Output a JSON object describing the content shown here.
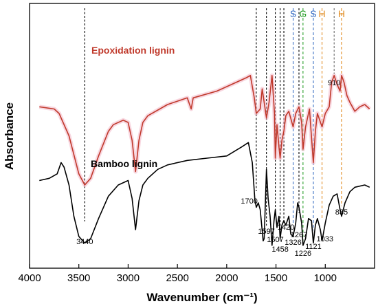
{
  "chart_data": {
    "type": "line",
    "xlabel": "Wavenumber (cm⁻¹)",
    "ylabel": "Absorbance",
    "xlim": [
      4000,
      500
    ],
    "x_reversed": true,
    "x_ticks": [
      4000,
      3500,
      3000,
      2500,
      2000,
      1500,
      1000
    ],
    "y_tick_labels": false,
    "grid": false,
    "colors": {
      "epoxidation": "#c0392b",
      "bamboo": "#000000",
      "S": "#3a6fc4",
      "G": "#2ca02c",
      "H": "#e08a1e",
      "marker": "#000000",
      "marker910": "#666666"
    },
    "series": [
      {
        "name": "Epoxidation lignin",
        "color": "#c0392b",
        "points": [
          [
            3900,
            63
          ],
          [
            3750,
            62
          ],
          [
            3700,
            60
          ],
          [
            3600,
            50
          ],
          [
            3500,
            33
          ],
          [
            3440,
            28
          ],
          [
            3380,
            31
          ],
          [
            3300,
            41
          ],
          [
            3200,
            52
          ],
          [
            3150,
            55
          ],
          [
            3050,
            57
          ],
          [
            3000,
            56
          ],
          [
            2960,
            48
          ],
          [
            2925,
            34
          ],
          [
            2890,
            48
          ],
          [
            2850,
            56
          ],
          [
            2800,
            59
          ],
          [
            2600,
            64
          ],
          [
            2400,
            67
          ],
          [
            2360,
            62
          ],
          [
            2340,
            67
          ],
          [
            2100,
            70
          ],
          [
            1900,
            74
          ],
          [
            1800,
            76
          ],
          [
            1760,
            77
          ],
          [
            1720,
            67
          ],
          [
            1700,
            60
          ],
          [
            1660,
            62
          ],
          [
            1640,
            71
          ],
          [
            1597,
            58
          ],
          [
            1570,
            65
          ],
          [
            1540,
            77
          ],
          [
            1515,
            60
          ],
          [
            1507,
            40
          ],
          [
            1490,
            55
          ],
          [
            1470,
            45
          ],
          [
            1458,
            40
          ],
          [
            1440,
            48
          ],
          [
            1420,
            52
          ],
          [
            1400,
            59
          ],
          [
            1370,
            61
          ],
          [
            1326,
            54
          ],
          [
            1300,
            60
          ],
          [
            1267,
            63
          ],
          [
            1240,
            56
          ],
          [
            1226,
            44
          ],
          [
            1200,
            54
          ],
          [
            1160,
            62
          ],
          [
            1121,
            38
          ],
          [
            1100,
            52
          ],
          [
            1080,
            60
          ],
          [
            1033,
            54
          ],
          [
            1000,
            60
          ],
          [
            960,
            63
          ],
          [
            935,
            74
          ],
          [
            910,
            77
          ],
          [
            880,
            73
          ],
          [
            850,
            70
          ],
          [
            835,
            77
          ],
          [
            810,
            74
          ],
          [
            780,
            68
          ],
          [
            750,
            65
          ],
          [
            700,
            61
          ],
          [
            650,
            63
          ],
          [
            600,
            64
          ],
          [
            550,
            62
          ]
        ]
      },
      {
        "name": "Bamboo lignin",
        "color": "#000000",
        "points": [
          [
            3900,
            30
          ],
          [
            3800,
            31
          ],
          [
            3720,
            33
          ],
          [
            3680,
            38
          ],
          [
            3650,
            36
          ],
          [
            3600,
            28
          ],
          [
            3550,
            14
          ],
          [
            3500,
            5
          ],
          [
            3440,
            2
          ],
          [
            3380,
            4
          ],
          [
            3300,
            13
          ],
          [
            3200,
            23
          ],
          [
            3100,
            28
          ],
          [
            3000,
            30
          ],
          [
            2960,
            22
          ],
          [
            2925,
            8
          ],
          [
            2890,
            21
          ],
          [
            2850,
            28
          ],
          [
            2800,
            31
          ],
          [
            2700,
            35
          ],
          [
            2600,
            37
          ],
          [
            2400,
            39
          ],
          [
            2200,
            40
          ],
          [
            2000,
            41
          ],
          [
            1850,
            45
          ],
          [
            1780,
            47
          ],
          [
            1740,
            38
          ],
          [
            1715,
            22
          ],
          [
            1700,
            18
          ],
          [
            1680,
            20
          ],
          [
            1660,
            17
          ],
          [
            1630,
            3
          ],
          [
            1620,
            4
          ],
          [
            1597,
            35
          ],
          [
            1580,
            22
          ],
          [
            1560,
            14
          ],
          [
            1540,
            1
          ],
          [
            1520,
            12
          ],
          [
            1507,
            17
          ],
          [
            1490,
            9
          ],
          [
            1470,
            14
          ],
          [
            1458,
            4
          ],
          [
            1440,
            10
          ],
          [
            1420,
            12
          ],
          [
            1400,
            10
          ],
          [
            1370,
            14
          ],
          [
            1350,
            6
          ],
          [
            1326,
            5
          ],
          [
            1300,
            11
          ],
          [
            1280,
            20
          ],
          [
            1267,
            18
          ],
          [
            1240,
            11
          ],
          [
            1226,
            1
          ],
          [
            1200,
            4
          ],
          [
            1170,
            13
          ],
          [
            1140,
            12
          ],
          [
            1121,
            2
          ],
          [
            1100,
            10
          ],
          [
            1080,
            13
          ],
          [
            1050,
            8
          ],
          [
            1033,
            3
          ],
          [
            1000,
            11
          ],
          [
            960,
            19
          ],
          [
            920,
            23
          ],
          [
            880,
            24
          ],
          [
            850,
            17
          ],
          [
            835,
            14
          ],
          [
            800,
            20
          ],
          [
            750,
            25
          ],
          [
            700,
            27
          ],
          [
            600,
            28
          ],
          [
            550,
            27
          ]
        ]
      }
    ],
    "series_labels": [
      "Epoxidation lignin",
      "Bamboo lignin"
    ],
    "peak_lines": [
      3440,
      1700,
      1597,
      1507,
      1458,
      1420,
      1326,
      1267,
      1226,
      1121,
      1033,
      910,
      835
    ],
    "peak_labels": [
      "3440",
      "1700",
      "1597",
      "1507",
      "1458",
      "1420",
      "1326",
      "1267",
      "1226",
      "1121",
      "1033",
      "910",
      "835"
    ],
    "band_labels": [
      {
        "text": "S",
        "x": 1326,
        "color": "#3a6fc4"
      },
      {
        "text": "G",
        "x": 1226,
        "color": "#2ca02c"
      },
      {
        "text": "S",
        "x": 1121,
        "color": "#3a6fc4"
      },
      {
        "text": "H",
        "x": 1033,
        "color": "#e08a1e"
      },
      {
        "text": "H",
        "x": 835,
        "color": "#e08a1e"
      }
    ]
  }
}
